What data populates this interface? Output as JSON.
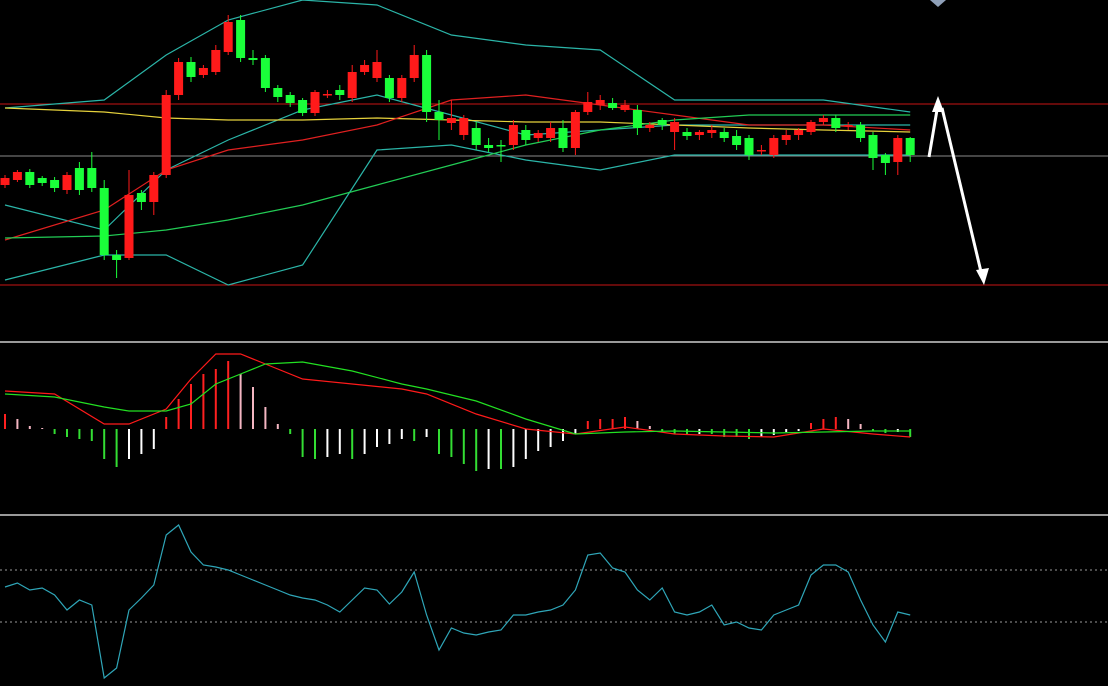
{
  "chart_data": [
    {
      "type": "candlestick",
      "ylim": [
        0,
        290
      ],
      "up_color": "#ff1a1a",
      "down_color": "#1aff3a",
      "open": [
        105,
        110,
        118,
        112,
        110,
        100,
        122,
        122,
        102,
        35,
        32,
        97,
        88,
        115,
        195,
        228,
        215,
        218,
        238,
        270,
        232,
        232,
        202,
        195,
        190,
        177,
        196,
        200,
        192,
        218,
        212,
        212,
        192,
        212,
        235,
        178,
        167,
        155,
        162,
        145,
        145,
        145,
        160,
        152,
        152,
        162,
        142,
        178,
        185,
        187,
        180,
        180,
        162,
        170,
        158,
        158,
        155,
        157,
        158,
        154,
        152,
        140,
        135,
        150,
        155,
        158,
        168,
        172,
        165,
        165,
        155,
        135,
        128,
        152
      ],
      "high": [
        115,
        120,
        121,
        114,
        113,
        118,
        128,
        138,
        110,
        40,
        120,
        100,
        118,
        200,
        232,
        233,
        225,
        245,
        275,
        275,
        240,
        235,
        205,
        198,
        192,
        200,
        200,
        205,
        225,
        230,
        240,
        215,
        215,
        245,
        240,
        190,
        190,
        175,
        168,
        152,
        150,
        170,
        165,
        160,
        168,
        170,
        180,
        198,
        195,
        192,
        190,
        185,
        168,
        172,
        172,
        162,
        160,
        165,
        162,
        160,
        155,
        145,
        155,
        160,
        162,
        170,
        175,
        175,
        168,
        168,
        158,
        137,
        155,
        153
      ],
      "low": [
        102,
        108,
        102,
        104,
        98,
        96,
        95,
        98,
        30,
        12,
        30,
        80,
        75,
        112,
        190,
        208,
        212,
        215,
        235,
        228,
        225,
        198,
        188,
        183,
        174,
        174,
        192,
        190,
        188,
        215,
        208,
        188,
        188,
        208,
        168,
        150,
        160,
        150,
        140,
        138,
        128,
        140,
        145,
        148,
        148,
        138,
        135,
        175,
        180,
        180,
        178,
        155,
        158,
        160,
        140,
        150,
        150,
        152,
        148,
        140,
        130,
        135,
        132,
        145,
        150,
        155,
        165,
        158,
        160,
        148,
        120,
        115,
        115,
        128
      ],
      "close": [
        112,
        118,
        105,
        107,
        102,
        115,
        100,
        102,
        35,
        30,
        95,
        88,
        115,
        195,
        228,
        213,
        222,
        240,
        268,
        232,
        230,
        202,
        193,
        187,
        177,
        198,
        196,
        195,
        218,
        225,
        228,
        192,
        212,
        235,
        178,
        170,
        172,
        172,
        145,
        142,
        144,
        165,
        150,
        157,
        162,
        142,
        178,
        188,
        190,
        182,
        185,
        162,
        165,
        165,
        168,
        154,
        158,
        160,
        152,
        145,
        135,
        140,
        152,
        155,
        160,
        168,
        172,
        162,
        165,
        152,
        132,
        127,
        152,
        135
      ],
      "overlays": [
        {
          "color": "#2bb5a8",
          "x": [
            0,
            8,
            13,
            18,
            24,
            30,
            36,
            42,
            48,
            54,
            60,
            66,
            73
          ],
          "values": [
            182,
            190,
            235,
            270,
            290,
            285,
            255,
            245,
            240,
            190,
            190,
            190,
            178
          ]
        },
        {
          "color": "#2bb5a8",
          "x": [
            0,
            8,
            13,
            18,
            24,
            30,
            36,
            42,
            48,
            54,
            60,
            66,
            73
          ],
          "values": [
            10,
            35,
            35,
            5,
            25,
            140,
            145,
            130,
            120,
            135,
            135,
            135,
            135
          ]
        },
        {
          "color": "#2bb5a8",
          "x": [
            0,
            8,
            13,
            18,
            24,
            30,
            36,
            42,
            48,
            54,
            60,
            66,
            73
          ],
          "values": [
            85,
            60,
            120,
            150,
            180,
            195,
            175,
            155,
            160,
            165,
            165,
            165,
            165
          ]
        },
        {
          "color": "#e6d23c",
          "x": [
            0,
            8,
            13,
            18,
            24,
            30,
            36,
            42,
            48,
            54,
            60,
            66,
            73
          ],
          "values": [
            182,
            178,
            172,
            170,
            170,
            172,
            170,
            168,
            168,
            165,
            162,
            160,
            158
          ]
        },
        {
          "color": "#e02020",
          "x": [
            0,
            8,
            13,
            18,
            24,
            30,
            36,
            42,
            48,
            54,
            60,
            66,
            73
          ],
          "values": [
            50,
            80,
            120,
            140,
            150,
            165,
            190,
            195,
            185,
            175,
            165,
            165,
            160
          ]
        },
        {
          "color": "#22cc55",
          "x": [
            0,
            8,
            13,
            18,
            24,
            30,
            36,
            42,
            48,
            54,
            60,
            66,
            73
          ],
          "values": [
            52,
            54,
            60,
            70,
            85,
            105,
            125,
            145,
            160,
            170,
            175,
            175,
            175
          ]
        }
      ],
      "hlines": [
        {
          "value": 186,
          "color": "#c81414"
        },
        {
          "value": 5,
          "color": "#c81414"
        },
        {
          "value": 134,
          "color": "#8a8a8a"
        }
      ]
    },
    {
      "type": "macd",
      "ylim": [
        -86,
        87
      ],
      "values": [
        15,
        10,
        3,
        1,
        -5,
        -8,
        -10,
        -12,
        -30,
        -38,
        -30,
        -25,
        -20,
        12,
        30,
        45,
        55,
        60,
        68,
        55,
        42,
        22,
        5,
        -5,
        -28,
        -30,
        -28,
        -25,
        -30,
        -25,
        -18,
        -15,
        -10,
        -12,
        -8,
        -25,
        -28,
        -35,
        -42,
        -40,
        -40,
        -38,
        -30,
        -22,
        -18,
        -12,
        -5,
        8,
        10,
        10,
        12,
        8,
        3,
        -2,
        -5,
        -6,
        -5,
        -5,
        -8,
        -8,
        -10,
        -8,
        -6,
        -3,
        -2,
        6,
        10,
        12,
        10,
        5,
        -2,
        -4,
        -3,
        -8
      ],
      "bar_colors": {
        "pos_up": "#ff2020",
        "pos_down": "#f4b6c2",
        "neg_down": "#33dd33",
        "neg_up": "#ffffff"
      },
      "lines": [
        {
          "color": "#ff1a1a",
          "x": [
            0,
            4,
            8,
            10,
            13,
            15,
            17,
            19,
            21,
            24,
            28,
            32,
            34,
            38,
            42,
            46,
            50,
            54,
            58,
            62,
            66,
            70,
            73
          ],
          "values": [
            38,
            35,
            5,
            5,
            20,
            50,
            75,
            75,
            65,
            50,
            45,
            40,
            35,
            15,
            0,
            -5,
            2,
            -5,
            -7,
            -8,
            0,
            -5,
            -8
          ]
        },
        {
          "color": "#22e022",
          "x": [
            0,
            4,
            8,
            10,
            13,
            15,
            17,
            19,
            21,
            24,
            28,
            32,
            34,
            38,
            42,
            46,
            50,
            54,
            58,
            62,
            66,
            70,
            73
          ],
          "values": [
            35,
            32,
            22,
            18,
            18,
            25,
            45,
            55,
            65,
            67,
            58,
            45,
            40,
            28,
            10,
            -5,
            -3,
            -2,
            -3,
            -4,
            -3,
            -2,
            -2
          ]
        }
      ]
    },
    {
      "type": "line",
      "ylim": [
        0,
        171
      ],
      "color": "#2fa6b8",
      "levels": [
        116,
        64
      ],
      "values": [
        99,
        103,
        96,
        98,
        91,
        76,
        86,
        81,
        8,
        18,
        76,
        88,
        101,
        151,
        161,
        134,
        121,
        119,
        116,
        111,
        106,
        101,
        96,
        91,
        88,
        86,
        81,
        74,
        86,
        98,
        96,
        82,
        94,
        114,
        71,
        36,
        58,
        53,
        51,
        54,
        56,
        71,
        71,
        74,
        76,
        81,
        96,
        131,
        133,
        118,
        114,
        96,
        86,
        98,
        74,
        71,
        74,
        81,
        61,
        64,
        58,
        56,
        71,
        76,
        81,
        111,
        121,
        121,
        114,
        86,
        61,
        44,
        74,
        71
      ]
    }
  ]
}
